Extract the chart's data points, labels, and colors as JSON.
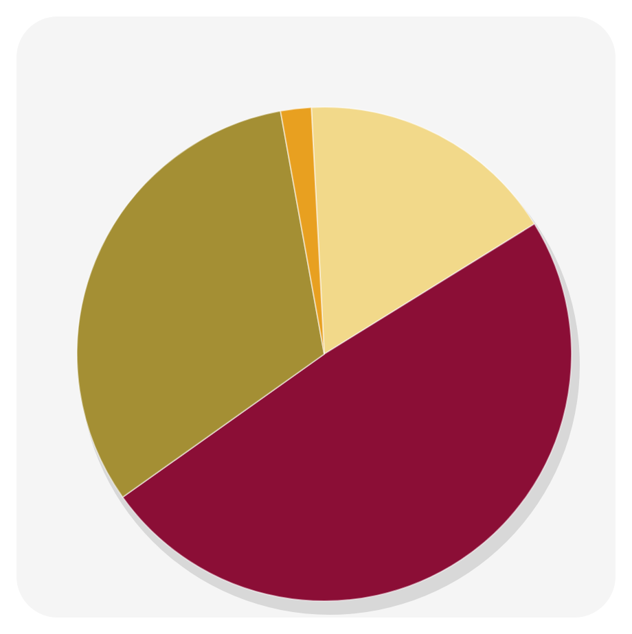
{
  "chart_data": {
    "type": "pie",
    "categories": [
      null,
      null,
      null,
      null
    ],
    "values": [
      17,
      49,
      32,
      2
    ],
    "colors": [
      "#f2d98a",
      "#8b0e36",
      "#a48f34",
      "#e8a020"
    ]
  }
}
